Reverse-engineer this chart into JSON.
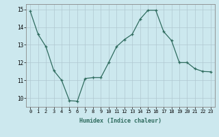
{
  "x": [
    0,
    1,
    2,
    3,
    4,
    5,
    6,
    7,
    8,
    9,
    10,
    11,
    12,
    13,
    14,
    15,
    16,
    17,
    18,
    19,
    20,
    21,
    22,
    23
  ],
  "y": [
    14.9,
    13.6,
    12.9,
    11.55,
    11.0,
    9.85,
    9.82,
    11.1,
    11.15,
    11.15,
    12.0,
    12.9,
    13.3,
    13.6,
    14.45,
    14.95,
    14.95,
    13.75,
    13.25,
    12.0,
    12.0,
    11.65,
    11.5,
    11.48
  ],
  "line_color": "#2e6b5e",
  "bg_color": "#cce8ee",
  "grid_color": "#b0c8d0",
  "xlabel": "Humidex (Indice chaleur)",
  "ylim": [
    9.5,
    15.3
  ],
  "xlim": [
    -0.5,
    23.5
  ],
  "yticks": [
    10,
    11,
    12,
    13,
    14,
    15
  ],
  "xticks": [
    0,
    1,
    2,
    3,
    4,
    5,
    6,
    7,
    8,
    9,
    10,
    11,
    12,
    13,
    14,
    15,
    16,
    17,
    18,
    19,
    20,
    21,
    22,
    23
  ]
}
